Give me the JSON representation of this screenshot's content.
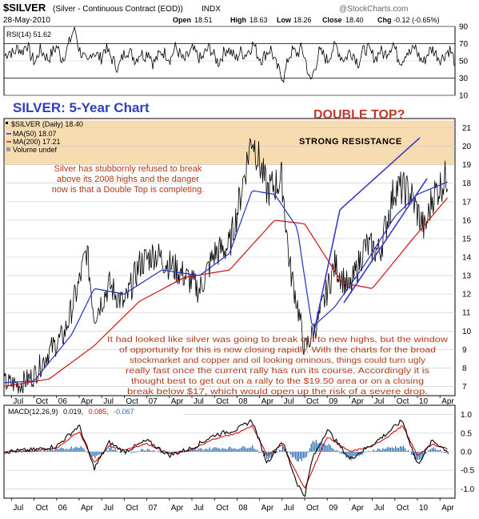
{
  "header": {
    "symbol": "$SILVER",
    "description": "(Silver - Continuous Contract (EOD))",
    "exchange": "INDX",
    "date": "28-May-2010",
    "open_label": "Open",
    "open": "18.51",
    "high_label": "High",
    "high": "18.63",
    "low_label": "Low",
    "low": "18.26",
    "close_label": "Close",
    "close": "18.40",
    "chg_label": "Chg",
    "chg": "-0.12 (-0.65%)",
    "logo": "@StockCharts.com"
  },
  "colors": {
    "title_blue": "#2f3fbf",
    "double_top_red": "#c0392b",
    "annotation_red": "#b03a1a",
    "resistance_band": "#f7d8a8",
    "ma50": "#2430c8",
    "ma200": "#d01010",
    "trend_lines": "#3a3ac8",
    "macd_hist": "#2e6fb0"
  },
  "rsi_panel": {
    "label": "RSI(14) 51.62",
    "ticks": [
      "90",
      "70",
      "50",
      "30",
      "10"
    ]
  },
  "price_panel": {
    "big_title": "SILVER: 5-Year Chart",
    "double_top": "DOUBLE TOP?",
    "resistance_label": "STRONG RESISTANCE",
    "legend": {
      "line1": "$SILVER (Daily) 18.40",
      "line2": "MA(50) 18.07",
      "line3": "MA(200) 17.21",
      "line4": "Volume undef"
    },
    "comment1": [
      "Silver has stubbornly refused to break",
      "above its 2008 highs and the danger",
      "now is that a Double Top is completing."
    ],
    "comment2": [
      "It had looked like silver was going to break out to new highs, but the window",
      "of opportunity for this is now closing rapidly. With the charts for the broad",
      "stockmarket and copper and oil looking ominous, things could turn ugly",
      "really fast once the current rally has run its course. Accordingly it is",
      "thought best to get out on a rally to the $19.50 area or on a closing",
      "break below $17, which would open up the risk of a severe drop."
    ]
  },
  "macd_panel": {
    "label_prefix": "MACD(12,26,9)",
    "macd_value": "0.019,",
    "signal_value": "0.085,",
    "hist_value": "-0.067",
    "ticks": [
      "1.0",
      "0.5",
      "0.0",
      "-0.5",
      "-1.0"
    ]
  },
  "x_axis_labels": [
    "Jul",
    "Oct",
    "06",
    "Apr",
    "Jul",
    "Oct",
    "07",
    "Apr",
    "Jul",
    "Oct",
    "08",
    "Apr",
    "Jul",
    "Oct",
    "09",
    "Apr",
    "Jul",
    "Oct",
    "10",
    "Apr"
  ],
  "chart_data": [
    {
      "type": "line",
      "title": "RSI(14) 51.62",
      "ylim": [
        10,
        90
      ],
      "y_ticks": [
        90,
        70,
        50,
        30,
        10
      ],
      "reference_lines": [
        30,
        70
      ],
      "series": [
        {
          "values": [
            56,
            62,
            58,
            66,
            60,
            71,
            55,
            48,
            63,
            58,
            52,
            61,
            67,
            52,
            60,
            74,
            90,
            64,
            55,
            45,
            62,
            58,
            52,
            66,
            57,
            49,
            41,
            55,
            63,
            58,
            51,
            60,
            56,
            62,
            47,
            54,
            61,
            58,
            52,
            66,
            59,
            49,
            56,
            63,
            57,
            51,
            60,
            66,
            55,
            48,
            58,
            65,
            59,
            52,
            61,
            57,
            63,
            70,
            56,
            52,
            60,
            64,
            47,
            37,
            30,
            54,
            62,
            58,
            65,
            50,
            24,
            41,
            60,
            57,
            50,
            63,
            67,
            55,
            52,
            61,
            58,
            47,
            60,
            65,
            58,
            53,
            62,
            57,
            63,
            71,
            55,
            50,
            61,
            58,
            67,
            54,
            48,
            60,
            64,
            57,
            52,
            59,
            63,
            51
          ]
        }
      ]
    },
    {
      "type": "line",
      "title": "$SILVER (Daily) 18.40",
      "ylim": [
        6.5,
        21.5
      ],
      "y_ticks": [
        7,
        8,
        9,
        10,
        11,
        12,
        13,
        14,
        15,
        16,
        17,
        18,
        19,
        20,
        21
      ],
      "x_range": [
        "Jun 2005",
        "May 2010"
      ],
      "resistance_band": [
        19.0,
        21.4
      ],
      "series": [
        {
          "name": "$SILVER (Daily)",
          "dates": [
            "2005-06",
            "2005-08",
            "2005-10",
            "2005-12",
            "2006-02",
            "2006-04",
            "2006-05",
            "2006-06",
            "2006-08",
            "2006-10",
            "2006-12",
            "2007-02",
            "2007-04",
            "2007-06",
            "2007-08",
            "2007-10",
            "2007-12",
            "2008-01",
            "2008-03",
            "2008-05",
            "2008-07",
            "2008-08",
            "2008-09",
            "2008-10",
            "2008-11",
            "2008-12",
            "2009-02",
            "2009-04",
            "2009-06",
            "2009-08",
            "2009-10",
            "2009-12",
            "2010-02",
            "2010-03",
            "2010-05"
          ],
          "values": [
            7.2,
            7.1,
            7.6,
            8.9,
            9.8,
            12.6,
            14.4,
            10.8,
            12.5,
            11.4,
            13.6,
            14.2,
            13.6,
            13.0,
            12.2,
            14.2,
            14.6,
            16.4,
            20.6,
            17.6,
            18.2,
            13.5,
            11.5,
            9.0,
            9.8,
            10.8,
            13.6,
            12.2,
            14.6,
            14.3,
            17.8,
            17.5,
            15.4,
            17.3,
            18.4
          ]
        },
        {
          "name": "MA(50)",
          "dates": [
            "2005-06",
            "2005-10",
            "2006-03",
            "2006-06",
            "2006-10",
            "2007-03",
            "2007-08",
            "2007-12",
            "2008-03",
            "2008-06",
            "2008-09",
            "2008-11",
            "2009-02",
            "2009-06",
            "2009-10",
            "2010-01",
            "2010-05"
          ],
          "values": [
            7.2,
            7.3,
            9.8,
            12.3,
            12.0,
            13.3,
            13.0,
            14.2,
            17.6,
            17.4,
            15.6,
            10.2,
            11.3,
            13.6,
            16.2,
            17.4,
            18.07
          ]
        },
        {
          "name": "MA(200)",
          "dates": [
            "2005-06",
            "2005-12",
            "2006-06",
            "2006-12",
            "2007-06",
            "2007-12",
            "2008-06",
            "2008-10",
            "2009-03",
            "2009-07",
            "2009-12",
            "2010-05"
          ],
          "values": [
            7.0,
            7.4,
            9.2,
            11.6,
            12.9,
            13.3,
            16.0,
            15.8,
            12.6,
            12.3,
            14.8,
            17.21
          ]
        }
      ]
    },
    {
      "type": "line",
      "title": "MACD(12,26,9)",
      "ylim": [
        -1.25,
        1.25
      ],
      "y_ticks": [
        1.0,
        0.5,
        0.0,
        -0.5,
        -1.0
      ],
      "series": [
        {
          "name": "MACD",
          "dates": [
            "2005-06",
            "2005-10",
            "2006-01",
            "2006-04",
            "2006-06",
            "2006-08",
            "2006-10",
            "2007-01",
            "2007-04",
            "2007-07",
            "2007-10",
            "2008-01",
            "2008-03",
            "2008-05",
            "2008-07",
            "2008-09",
            "2008-10",
            "2008-11",
            "2009-01",
            "2009-04",
            "2009-07",
            "2009-09",
            "2009-11",
            "2010-01",
            "2010-03",
            "2010-05"
          ],
          "values": [
            0.0,
            0.05,
            0.15,
            0.7,
            -0.45,
            0.25,
            0.0,
            0.3,
            -0.1,
            0.1,
            0.45,
            0.6,
            0.85,
            -0.3,
            0.3,
            -0.85,
            -1.2,
            -0.2,
            0.6,
            -0.2,
            0.2,
            0.5,
            0.85,
            -0.35,
            0.3,
            0.019
          ]
        },
        {
          "name": "Signal",
          "values": [
            0.0,
            0.02,
            0.1,
            0.55,
            -0.3,
            0.15,
            0.05,
            0.22,
            -0.05,
            0.05,
            0.35,
            0.5,
            0.7,
            -0.1,
            0.2,
            -0.6,
            -1.0,
            -0.5,
            0.4,
            0.0,
            0.15,
            0.4,
            0.7,
            -0.1,
            0.2,
            0.085
          ]
        },
        {
          "name": "Histogram",
          "values": [
            0.0,
            0.03,
            0.05,
            0.15,
            -0.15,
            0.1,
            -0.05,
            0.08,
            -0.05,
            0.05,
            0.1,
            0.1,
            0.15,
            -0.2,
            0.1,
            -0.25,
            -0.2,
            0.3,
            0.2,
            -0.2,
            0.05,
            0.1,
            0.15,
            -0.25,
            0.1,
            -0.067
          ]
        }
      ]
    }
  ]
}
